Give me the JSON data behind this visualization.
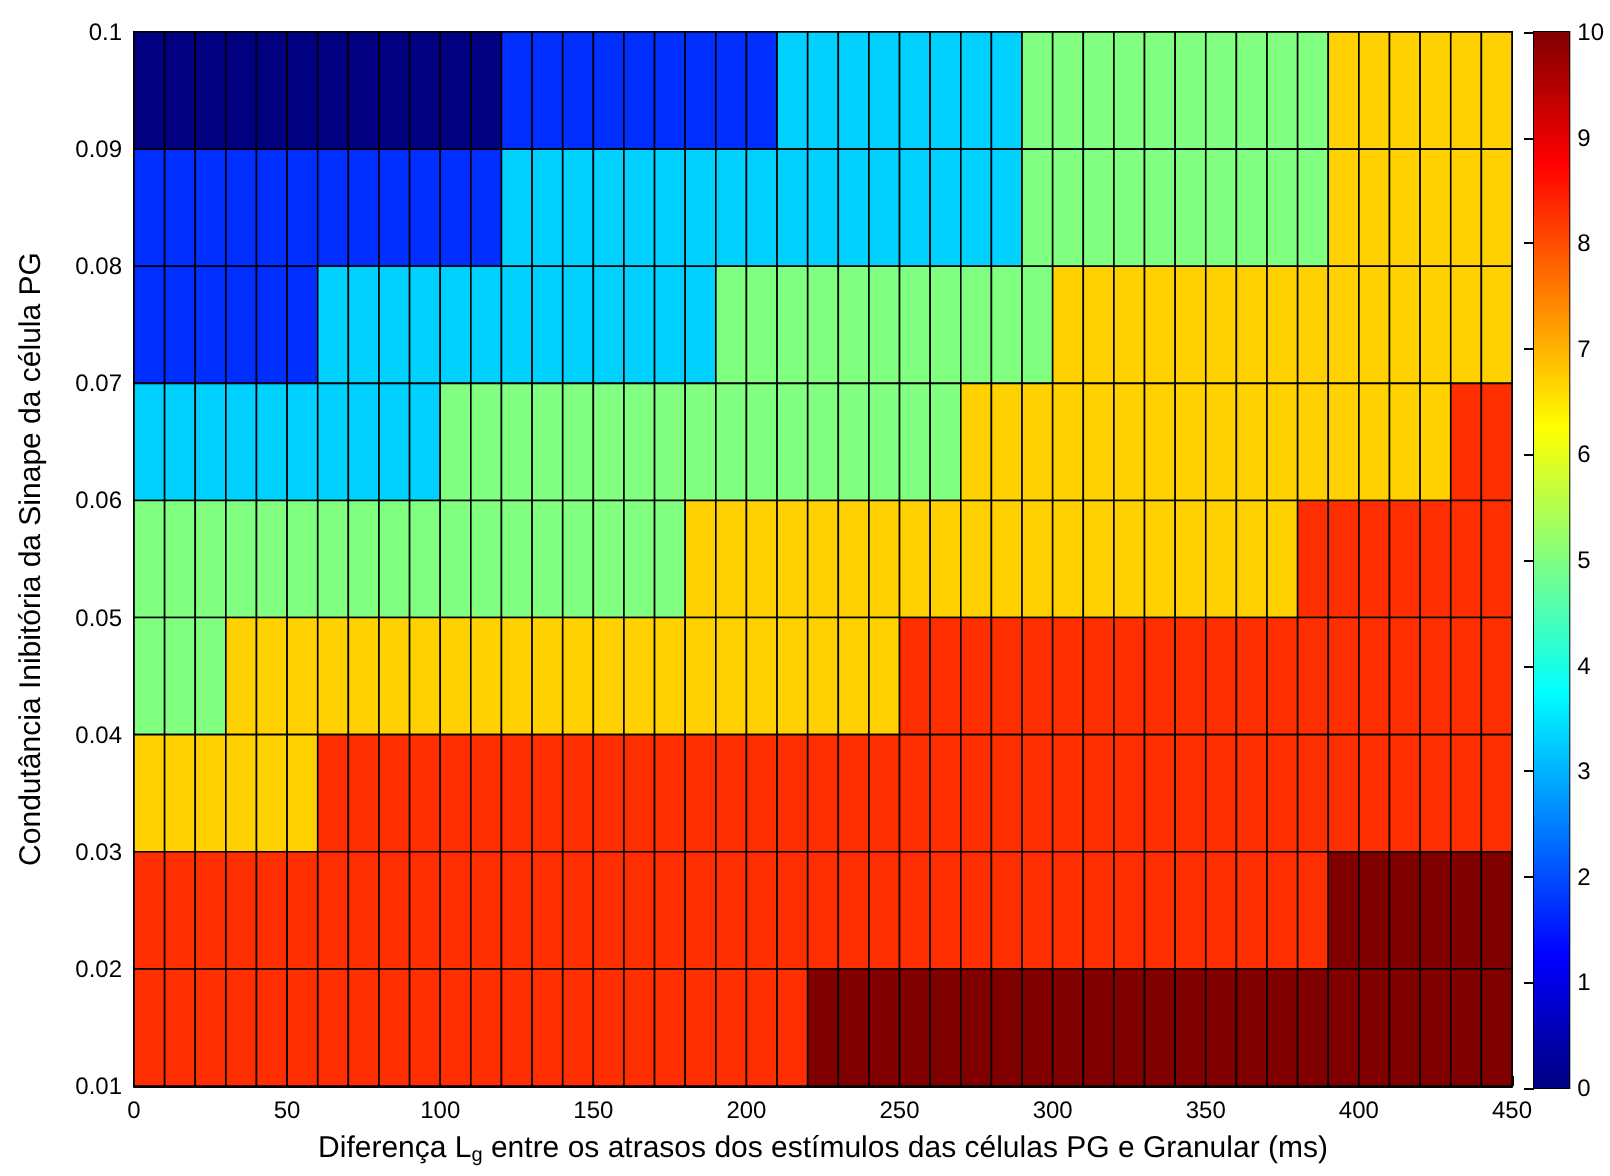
{
  "chart_data": {
    "type": "heatmap",
    "xlabel": "Diferença L$_{g}$ entre os atrasos dos estímulos das células PG e Granular (ms)",
    "ylabel": "Condutância Inibitória da Sinape da célula PG",
    "xlim": [
      0,
      450
    ],
    "xticks": [
      0,
      50,
      100,
      150,
      200,
      250,
      300,
      350,
      400,
      450
    ],
    "ylim": [
      0.01,
      0.1
    ],
    "yticks": [
      0.01,
      0.02,
      0.03,
      0.04,
      0.05,
      0.06,
      0.07,
      0.08,
      0.09,
      0.1
    ],
    "clim": [
      0,
      10
    ],
    "cticks": [
      0,
      1,
      2,
      3,
      4,
      5,
      6,
      7,
      8,
      9,
      10
    ],
    "grid": false,
    "cells": [
      [
        0,
        0,
        0,
        0,
        0,
        0,
        0,
        0,
        0,
        0,
        0,
        0,
        1.7,
        1.7,
        1.7,
        1.7,
        1.7,
        1.7,
        1.7,
        1.7,
        1.7,
        3.3,
        3.3,
        3.3,
        3.3,
        3.3,
        3.3,
        3.3,
        3.3,
        5,
        5,
        5,
        5,
        5,
        5,
        5,
        5,
        5,
        5,
        6.7,
        6.7,
        6.7,
        6.7,
        6.7,
        6.7
      ],
      [
        1.7,
        1.7,
        1.7,
        1.7,
        1.7,
        1.7,
        1.7,
        1.7,
        1.7,
        1.7,
        1.7,
        1.7,
        3.3,
        3.3,
        3.3,
        3.3,
        3.3,
        3.3,
        3.3,
        3.3,
        3.3,
        3.3,
        3.3,
        3.3,
        3.3,
        3.3,
        3.3,
        3.3,
        3.3,
        5,
        5,
        5,
        5,
        5,
        5,
        5,
        5,
        5,
        5,
        6.7,
        6.7,
        6.7,
        6.7,
        6.7,
        6.7
      ],
      [
        1.7,
        1.7,
        1.7,
        1.7,
        1.7,
        1.7,
        3.3,
        3.3,
        3.3,
        3.3,
        3.3,
        3.3,
        3.3,
        3.3,
        3.3,
        3.3,
        3.3,
        3.3,
        3.3,
        5,
        5,
        5,
        5,
        5,
        5,
        5,
        5,
        5,
        5,
        5,
        6.7,
        6.7,
        6.7,
        6.7,
        6.7,
        6.7,
        6.7,
        6.7,
        6.7,
        6.7,
        6.7,
        6.7,
        6.7,
        6.7,
        6.7
      ],
      [
        3.3,
        3.3,
        3.3,
        3.3,
        3.3,
        3.3,
        3.3,
        3.3,
        3.3,
        3.3,
        5,
        5,
        5,
        5,
        5,
        5,
        5,
        5,
        5,
        5,
        5,
        5,
        5,
        5,
        5,
        5,
        5,
        6.7,
        6.7,
        6.7,
        6.7,
        6.7,
        6.7,
        6.7,
        6.7,
        6.7,
        6.7,
        6.7,
        6.7,
        6.7,
        6.7,
        6.7,
        6.7,
        8.3,
        8.3
      ],
      [
        5,
        5,
        5,
        5,
        5,
        5,
        5,
        5,
        5,
        5,
        5,
        5,
        5,
        5,
        5,
        5,
        5,
        5,
        6.7,
        6.7,
        6.7,
        6.7,
        6.7,
        6.7,
        6.7,
        6.7,
        6.7,
        6.7,
        6.7,
        6.7,
        6.7,
        6.7,
        6.7,
        6.7,
        6.7,
        6.7,
        6.7,
        6.7,
        8.3,
        8.3,
        8.3,
        8.3,
        8.3,
        8.3,
        8.3
      ],
      [
        5,
        5,
        5,
        6.7,
        6.7,
        6.7,
        6.7,
        6.7,
        6.7,
        6.7,
        6.7,
        6.7,
        6.7,
        6.7,
        6.7,
        6.7,
        6.7,
        6.7,
        6.7,
        6.7,
        6.7,
        6.7,
        6.7,
        6.7,
        6.7,
        8.3,
        8.3,
        8.3,
        8.3,
        8.3,
        8.3,
        8.3,
        8.3,
        8.3,
        8.3,
        8.3,
        8.3,
        8.3,
        8.3,
        8.3,
        8.3,
        8.3,
        8.3,
        8.3,
        8.3
      ],
      [
        6.7,
        6.7,
        6.7,
        6.7,
        6.7,
        6.7,
        8.3,
        8.3,
        8.3,
        8.3,
        8.3,
        8.3,
        8.3,
        8.3,
        8.3,
        8.3,
        8.3,
        8.3,
        8.3,
        8.3,
        8.3,
        8.3,
        8.3,
        8.3,
        8.3,
        8.3,
        8.3,
        8.3,
        8.3,
        8.3,
        8.3,
        8.3,
        8.3,
        8.3,
        8.3,
        8.3,
        8.3,
        8.3,
        8.3,
        8.3,
        8.3,
        8.3,
        8.3,
        8.3,
        8.3
      ],
      [
        8.3,
        8.3,
        8.3,
        8.3,
        8.3,
        8.3,
        8.3,
        8.3,
        8.3,
        8.3,
        8.3,
        8.3,
        8.3,
        8.3,
        8.3,
        8.3,
        8.3,
        8.3,
        8.3,
        8.3,
        8.3,
        8.3,
        8.3,
        8.3,
        8.3,
        8.3,
        8.3,
        8.3,
        8.3,
        8.3,
        8.3,
        8.3,
        8.3,
        8.3,
        8.3,
        8.3,
        8.3,
        8.3,
        8.3,
        10,
        10,
        10,
        10,
        10,
        10
      ],
      [
        8.3,
        8.3,
        8.3,
        8.3,
        8.3,
        8.3,
        8.3,
        8.3,
        8.3,
        8.3,
        8.3,
        8.3,
        8.3,
        8.3,
        8.3,
        8.3,
        8.3,
        8.3,
        8.3,
        8.3,
        8.3,
        8.3,
        10,
        10,
        10,
        10,
        10,
        10,
        10,
        10,
        10,
        10,
        10,
        10,
        10,
        10,
        10,
        10,
        10,
        10,
        10,
        10,
        10,
        10,
        10
      ]
    ]
  }
}
